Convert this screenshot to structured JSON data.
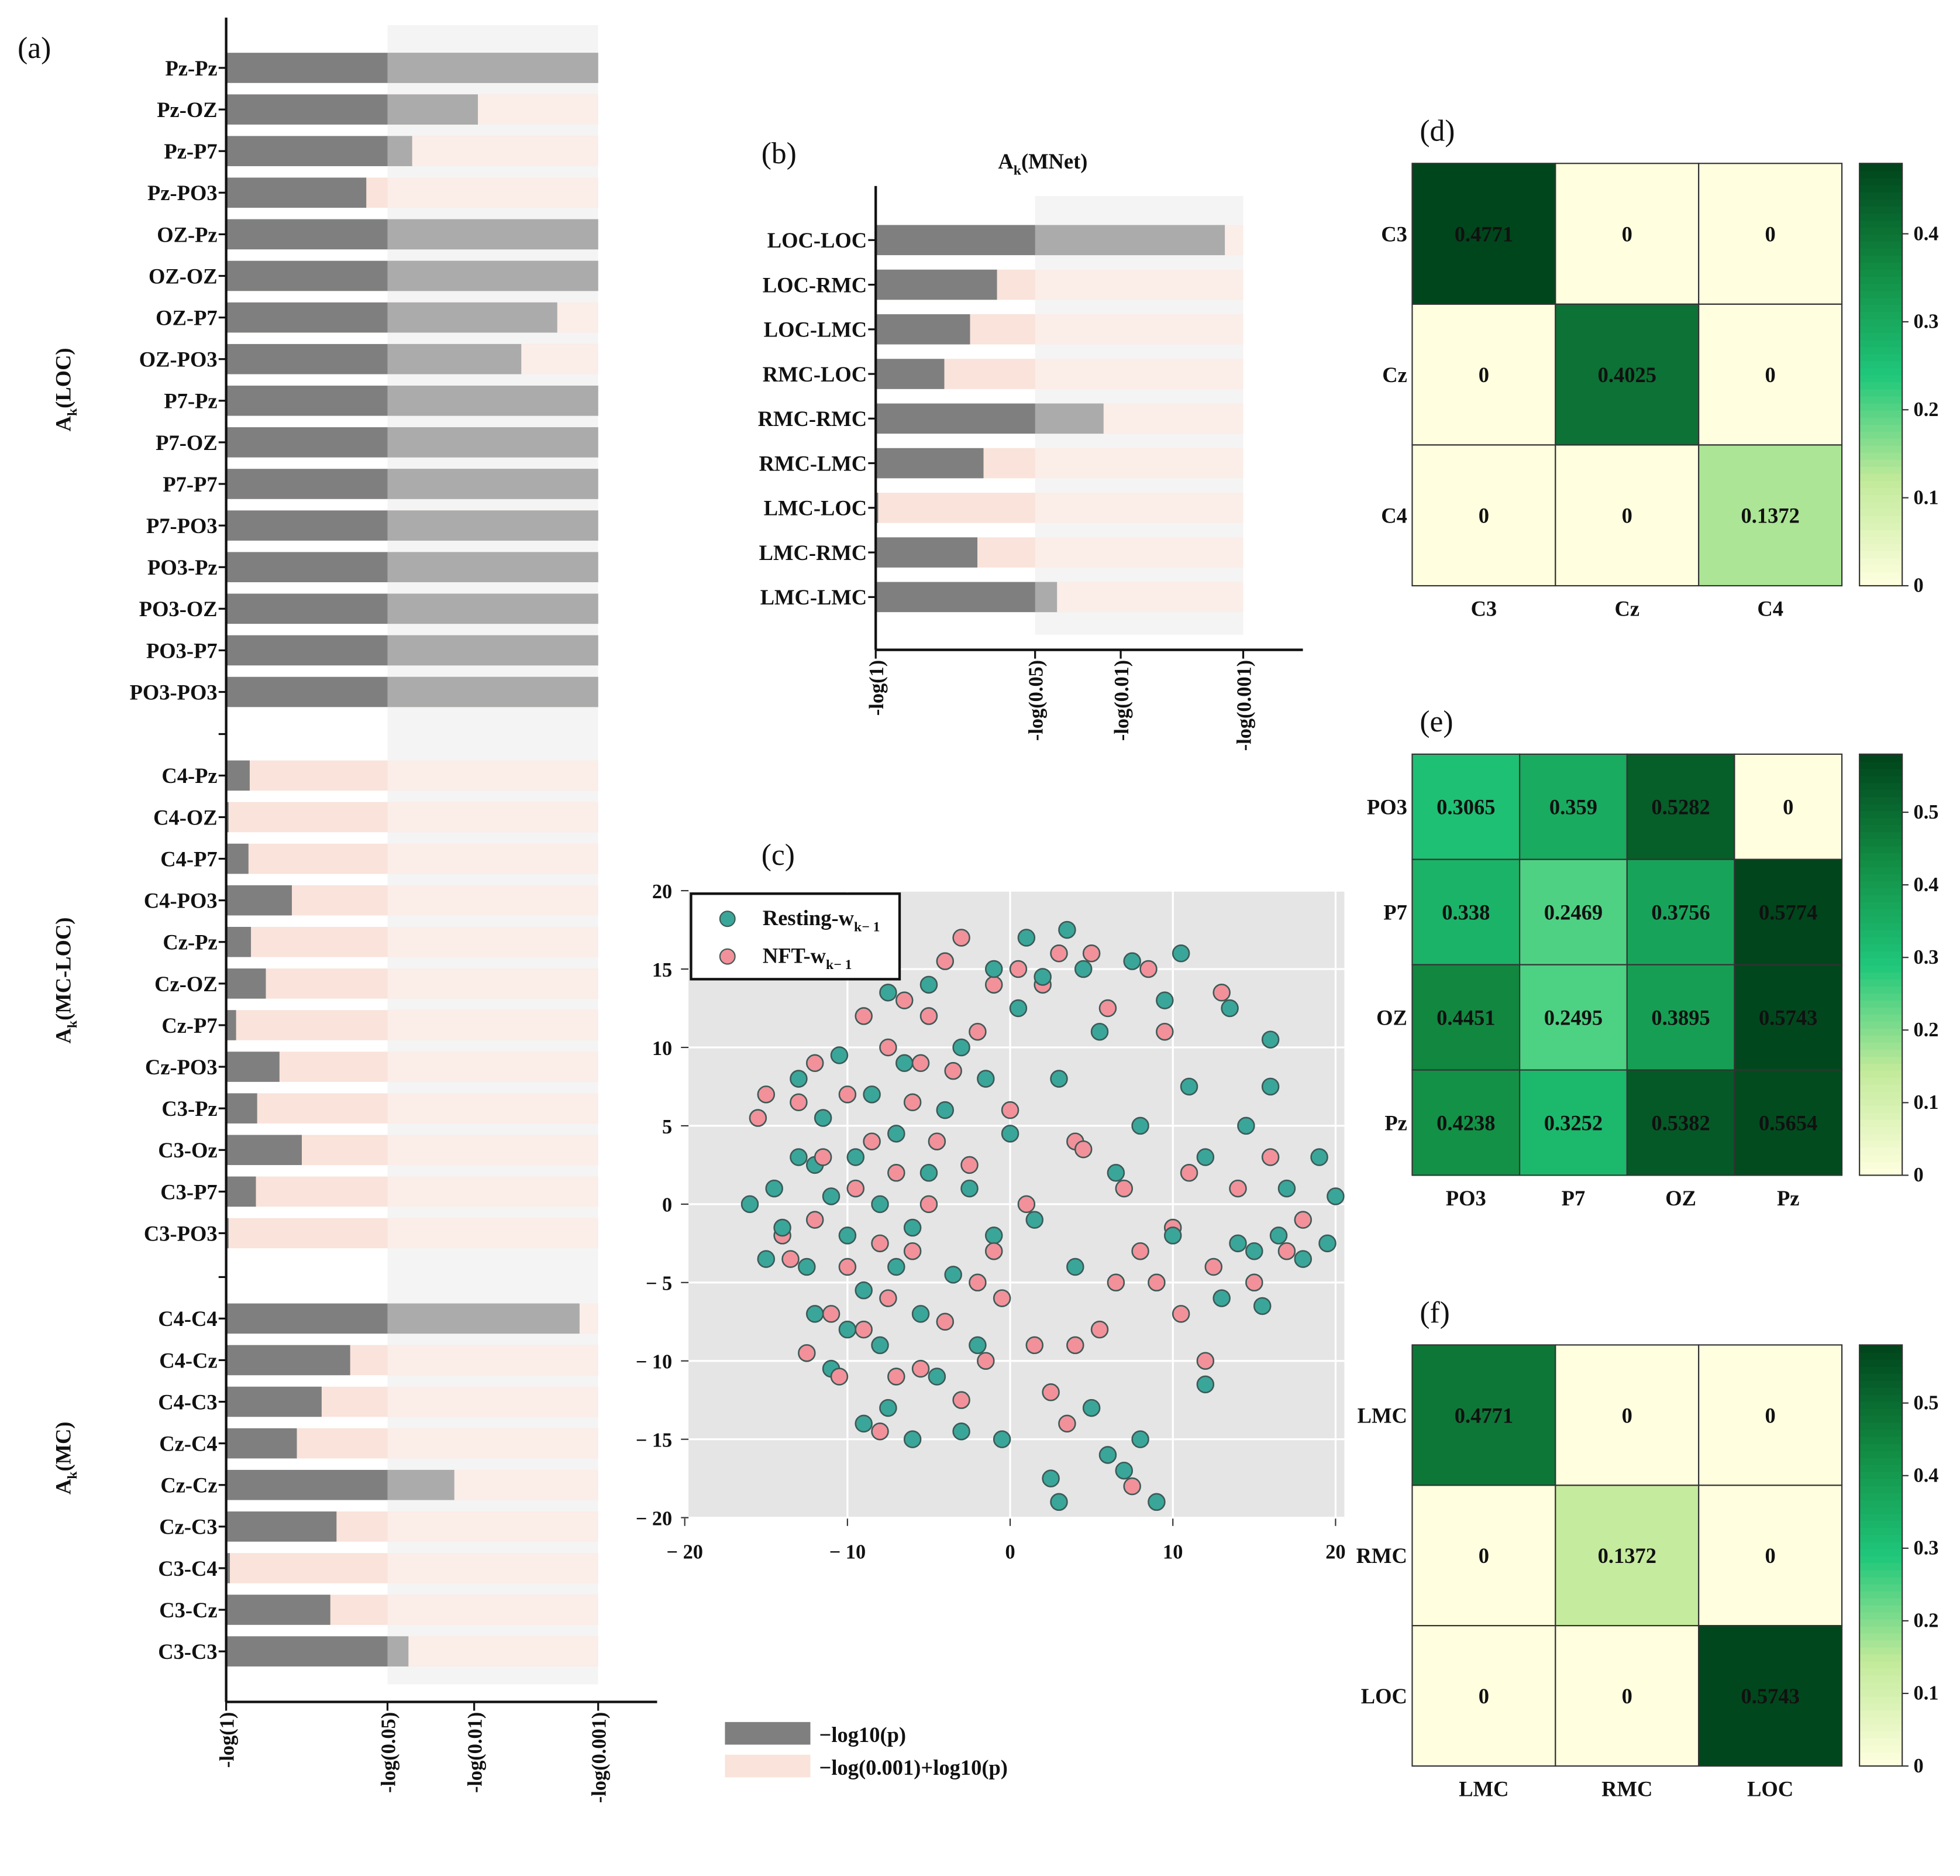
{
  "colors": {
    "bar": "#7f7f7f",
    "remainder": "#f9e3da",
    "resting": "#3aa69a",
    "nft": "#f2919a",
    "scatter_bg": "#e5e5e5"
  },
  "legend_bars": [
    "−log10(p)",
    "−log(0.001)+log10(p)"
  ],
  "chart_data": [
    {
      "id": "a",
      "panel_label": "(a)",
      "type": "bar",
      "orientation": "horizontal",
      "xlim": [
        0,
        3
      ],
      "xticks": [
        {
          "value": 0,
          "label": "-log(1)"
        },
        {
          "value": 1.301,
          "label": "-log(0.05)"
        },
        {
          "value": 2,
          "label": "-log(0.01)"
        },
        {
          "value": 3,
          "label": "-log(0.001)"
        }
      ],
      "groups": [
        {
          "label": "A",
          "sub": "k",
          "suffix": "(LOC)",
          "categories": [
            "Pz-Pz",
            "Pz-OZ",
            "Pz-P7",
            "Pz-PO3",
            "OZ-Pz",
            "OZ-OZ",
            "OZ-P7",
            "OZ-PO3",
            "P7-Pz",
            "P7-OZ",
            "P7-P7",
            "P7-PO3",
            "PO3-Pz",
            "PO3-OZ",
            "PO3-P7",
            "PO3-PO3"
          ],
          "values": [
            3.0,
            2.03,
            1.5,
            1.13,
            3.0,
            3.0,
            2.67,
            2.38,
            3.0,
            3.0,
            3.0,
            3.0,
            3.0,
            3.0,
            3.0,
            3.0
          ]
        },
        {
          "label": "A",
          "sub": "k",
          "suffix": "(MC-LOC)",
          "categories": [
            "C4-Pz",
            "C4-OZ",
            "C4-P7",
            "C4-PO3",
            "Cz-Pz",
            "Cz-OZ",
            "Cz-P7",
            "Cz-PO3",
            "C3-Pz",
            "C3-Oz",
            "C3-P7",
            "C3-PO3"
          ],
          "values": [
            0.19,
            0.02,
            0.18,
            0.53,
            0.2,
            0.32,
            0.08,
            0.43,
            0.25,
            0.61,
            0.24,
            0.02
          ]
        },
        {
          "label": "A",
          "sub": "k",
          "suffix": "(MC)",
          "categories": [
            "C4-C4",
            "C4-Cz",
            "C4-C3",
            "Cz-C4",
            "Cz-Cz",
            "Cz-C3",
            "C3-C4",
            "C3-Cz",
            "C3-C3"
          ],
          "values": [
            2.85,
            1.0,
            0.77,
            0.57,
            1.84,
            0.89,
            0.03,
            0.84,
            1.47
          ]
        }
      ]
    },
    {
      "id": "b",
      "panel_label": "(b)",
      "type": "bar",
      "orientation": "horizontal",
      "title": "A",
      "title_sub": "k",
      "title_suffix": "(MNet)",
      "xlim": [
        0,
        3
      ],
      "xticks": [
        {
          "value": 0,
          "label": "-log(1)"
        },
        {
          "value": 1.301,
          "label": "-log(0.05)"
        },
        {
          "value": 2,
          "label": "-log(0.01)"
        },
        {
          "value": 3,
          "label": "-log(0.001)"
        }
      ],
      "categories": [
        "LOC-LOC",
        "LOC-RMC",
        "LOC-LMC",
        "RMC-LOC",
        "RMC-RMC",
        "RMC-LMC",
        "LMC-LOC",
        "LMC-RMC",
        "LMC-LMC"
      ],
      "values": [
        2.85,
        0.99,
        0.77,
        0.56,
        1.86,
        0.88,
        0.02,
        0.83,
        1.48
      ]
    },
    {
      "id": "c",
      "panel_label": "(c)",
      "type": "scatter",
      "xlim": [
        -20,
        20.5
      ],
      "ylim": [
        -20,
        20
      ],
      "xticks": [
        {
          "value": -20,
          "label": "− 20"
        },
        {
          "value": -10,
          "label": "− 10"
        },
        {
          "value": 0,
          "label": "0"
        },
        {
          "value": 10,
          "label": "10"
        },
        {
          "value": 20,
          "label": "20"
        }
      ],
      "yticks": [
        {
          "value": 20,
          "label": "20"
        },
        {
          "value": 15,
          "label": "15"
        },
        {
          "value": 10,
          "label": "10"
        },
        {
          "value": 5,
          "label": "5"
        },
        {
          "value": 0,
          "label": "0"
        },
        {
          "value": -5,
          "label": "− 5"
        },
        {
          "value": -10,
          "label": "− 10"
        },
        {
          "value": -15,
          "label": "− 15"
        },
        {
          "value": -20,
          "label": "− 20"
        }
      ],
      "legend_position": "top-left",
      "series": [
        {
          "name": "Resting-w",
          "sub": "k− 1",
          "color_key": "resting",
          "points": [
            [
              -16,
              0
            ],
            [
              -15,
              -3.5
            ],
            [
              -14.5,
              1
            ],
            [
              -14,
              -1.5
            ],
            [
              -13,
              3
            ],
            [
              -13,
              8
            ],
            [
              -12.5,
              -4
            ],
            [
              -12,
              2.5
            ],
            [
              -12,
              -7
            ],
            [
              -11.5,
              5.5
            ],
            [
              -11,
              -10.5
            ],
            [
              -11,
              0.5
            ],
            [
              -10.5,
              9.5
            ],
            [
              -10,
              -2
            ],
            [
              -10,
              -8
            ],
            [
              -9.5,
              3
            ],
            [
              -9,
              -5.5
            ],
            [
              -9,
              -14
            ],
            [
              -8.5,
              7
            ],
            [
              -8,
              -9
            ],
            [
              -8,
              0
            ],
            [
              -7.5,
              13.5
            ],
            [
              -7.5,
              -13
            ],
            [
              -7,
              4.5
            ],
            [
              -7,
              -4
            ],
            [
              -6.5,
              9
            ],
            [
              -6,
              -1.5
            ],
            [
              -6,
              -15
            ],
            [
              -5.5,
              -7
            ],
            [
              -5,
              2
            ],
            [
              -5,
              14
            ],
            [
              -4.5,
              -11
            ],
            [
              -4,
              6
            ],
            [
              -3.5,
              -4.5
            ],
            [
              -3,
              10
            ],
            [
              -3,
              -14.5
            ],
            [
              -2.5,
              1
            ],
            [
              -2,
              -9
            ],
            [
              -1.5,
              8
            ],
            [
              -1,
              15
            ],
            [
              -1,
              -2
            ],
            [
              -0.5,
              -15
            ],
            [
              0,
              4.5
            ],
            [
              0.5,
              12.5
            ],
            [
              1,
              17
            ],
            [
              1.5,
              -1
            ],
            [
              2,
              14.5
            ],
            [
              2.5,
              -17.5
            ],
            [
              3,
              8
            ],
            [
              3,
              -19
            ],
            [
              3.5,
              17.5
            ],
            [
              4,
              -4
            ],
            [
              4.5,
              15
            ],
            [
              5,
              -13
            ],
            [
              5.5,
              11
            ],
            [
              6,
              -16
            ],
            [
              6.5,
              2
            ],
            [
              7,
              -17
            ],
            [
              7.5,
              15.5
            ],
            [
              8,
              5
            ],
            [
              8,
              -15
            ],
            [
              9,
              -19
            ],
            [
              9.5,
              13
            ],
            [
              10,
              -2
            ],
            [
              10.5,
              16
            ],
            [
              11,
              7.5
            ],
            [
              12,
              -11.5
            ],
            [
              12,
              3
            ],
            [
              13,
              -6
            ],
            [
              13.5,
              12.5
            ],
            [
              14,
              -2.5
            ],
            [
              14.5,
              5
            ],
            [
              15,
              -3
            ],
            [
              15.5,
              -6.5
            ],
            [
              16,
              10.5
            ],
            [
              16.5,
              -2
            ],
            [
              17,
              1
            ],
            [
              18,
              -3.5
            ],
            [
              19,
              3
            ],
            [
              20,
              0.5
            ],
            [
              19.5,
              -2.5
            ],
            [
              16,
              7.5
            ]
          ]
        },
        {
          "name": "NFT-w",
          "sub": "k− 1",
          "color_key": "nft",
          "points": [
            [
              -15.5,
              5.5
            ],
            [
              -15,
              7
            ],
            [
              -14,
              -2
            ],
            [
              -13.5,
              -3.5
            ],
            [
              -13,
              6.5
            ],
            [
              -12.5,
              -9.5
            ],
            [
              -12,
              9
            ],
            [
              -12,
              -1
            ],
            [
              -11.5,
              3
            ],
            [
              -11,
              -7
            ],
            [
              -10.5,
              -11
            ],
            [
              -10,
              7
            ],
            [
              -10,
              -4
            ],
            [
              -9.5,
              1
            ],
            [
              -9,
              12
            ],
            [
              -9,
              -8
            ],
            [
              -8.5,
              4
            ],
            [
              -8,
              -2.5
            ],
            [
              -8,
              -14.5
            ],
            [
              -7.5,
              10
            ],
            [
              -7.5,
              -6
            ],
            [
              -7,
              2
            ],
            [
              -7,
              -11
            ],
            [
              -6.5,
              13
            ],
            [
              -6,
              6.5
            ],
            [
              -6,
              -3
            ],
            [
              -5.5,
              9
            ],
            [
              -5.5,
              -10.5
            ],
            [
              -5,
              0
            ],
            [
              -5,
              12
            ],
            [
              -4.5,
              4
            ],
            [
              -4,
              -7.5
            ],
            [
              -4,
              15.5
            ],
            [
              -3.5,
              8.5
            ],
            [
              -3,
              -12.5
            ],
            [
              -3,
              17
            ],
            [
              -2.5,
              2.5
            ],
            [
              -2,
              -5
            ],
            [
              -2,
              11
            ],
            [
              -1.5,
              -10
            ],
            [
              -1,
              14
            ],
            [
              -0.5,
              -6
            ],
            [
              0,
              6
            ],
            [
              0.5,
              15
            ],
            [
              1,
              0
            ],
            [
              1.5,
              -9
            ],
            [
              2,
              14
            ],
            [
              2.5,
              -12
            ],
            [
              3,
              16
            ],
            [
              3.5,
              -14
            ],
            [
              4,
              -9
            ],
            [
              4.5,
              3.5
            ],
            [
              5,
              16
            ],
            [
              5.5,
              -8
            ],
            [
              6,
              12.5
            ],
            [
              6.5,
              -5
            ],
            [
              7,
              1
            ],
            [
              7.5,
              -18
            ],
            [
              8,
              -3
            ],
            [
              8.5,
              15
            ],
            [
              9,
              -5
            ],
            [
              9.5,
              11
            ],
            [
              10,
              -1.5
            ],
            [
              10.5,
              -7
            ],
            [
              11,
              2
            ],
            [
              12,
              -10
            ],
            [
              12.5,
              -4
            ],
            [
              13,
              13.5
            ],
            [
              14,
              1
            ],
            [
              15,
              -5
            ],
            [
              16,
              3
            ],
            [
              17,
              -3
            ],
            [
              18,
              -1
            ],
            [
              4,
              4
            ],
            [
              -1,
              -3
            ]
          ]
        }
      ]
    },
    {
      "id": "d",
      "panel_label": "(d)",
      "type": "heatmap",
      "rows": [
        "C3",
        "Cz",
        "C4"
      ],
      "cols": [
        "C3",
        "Cz",
        "C4"
      ],
      "values": [
        [
          0.4771,
          0,
          0
        ],
        [
          0,
          0.4025,
          0
        ],
        [
          0,
          0,
          0.1372
        ]
      ],
      "labels": [
        [
          "0.4771",
          "0",
          "0"
        ],
        [
          "0",
          "0.4025",
          "0"
        ],
        [
          "0",
          "0",
          "0.1372"
        ]
      ],
      "colorbar": {
        "min": 0,
        "max": 0.48,
        "ticks": [
          0,
          0.1,
          0.2,
          0.3,
          0.4
        ],
        "tick_labels": [
          "0",
          "0.1",
          "0.2",
          "0.3",
          "0.4"
        ]
      }
    },
    {
      "id": "e",
      "panel_label": "(e)",
      "type": "heatmap",
      "rows": [
        "PO3",
        "P7",
        "OZ",
        "Pz"
      ],
      "cols": [
        "PO3",
        "P7",
        "OZ",
        "Pz"
      ],
      "values": [
        [
          0.3065,
          0.359,
          0.5282,
          0
        ],
        [
          0.338,
          0.2469,
          0.3756,
          0.5774
        ],
        [
          0.4451,
          0.2495,
          0.3895,
          0.5743
        ],
        [
          0.4238,
          0.3252,
          0.5382,
          0.5654
        ]
      ],
      "labels": [
        [
          "0.3065",
          "0.359",
          "0.5282",
          "0"
        ],
        [
          "0.338",
          "0.2469",
          "0.3756",
          "0.5774"
        ],
        [
          "0.4451",
          "0.2495",
          "0.3895",
          "0.5743"
        ],
        [
          "0.4238",
          "0.3252",
          "0.5382",
          "0.5654"
        ]
      ],
      "colorbar": {
        "min": 0,
        "max": 0.58,
        "ticks": [
          0,
          0.1,
          0.2,
          0.3,
          0.4,
          0.5
        ],
        "tick_labels": [
          "0",
          "0.1",
          "0.2",
          "0.3",
          "0.4",
          "0.5"
        ]
      }
    },
    {
      "id": "f",
      "panel_label": "(f)",
      "type": "heatmap",
      "rows": [
        "LMC",
        "RMC",
        "LOC"
      ],
      "cols": [
        "LMC",
        "RMC",
        "LOC"
      ],
      "values": [
        [
          0.4771,
          0,
          0
        ],
        [
          0,
          0.1372,
          0
        ],
        [
          0,
          0,
          0.5743
        ]
      ],
      "labels": [
        [
          "0.4771",
          "0",
          "0"
        ],
        [
          "0",
          "0.1372",
          "0"
        ],
        [
          "0",
          "0",
          "0.5743"
        ]
      ],
      "colorbar": {
        "min": 0,
        "max": 0.58,
        "ticks": [
          0,
          0.1,
          0.2,
          0.3,
          0.4,
          0.5
        ],
        "tick_labels": [
          "0",
          "0.1",
          "0.2",
          "0.3",
          "0.4",
          "0.5"
        ]
      }
    }
  ]
}
